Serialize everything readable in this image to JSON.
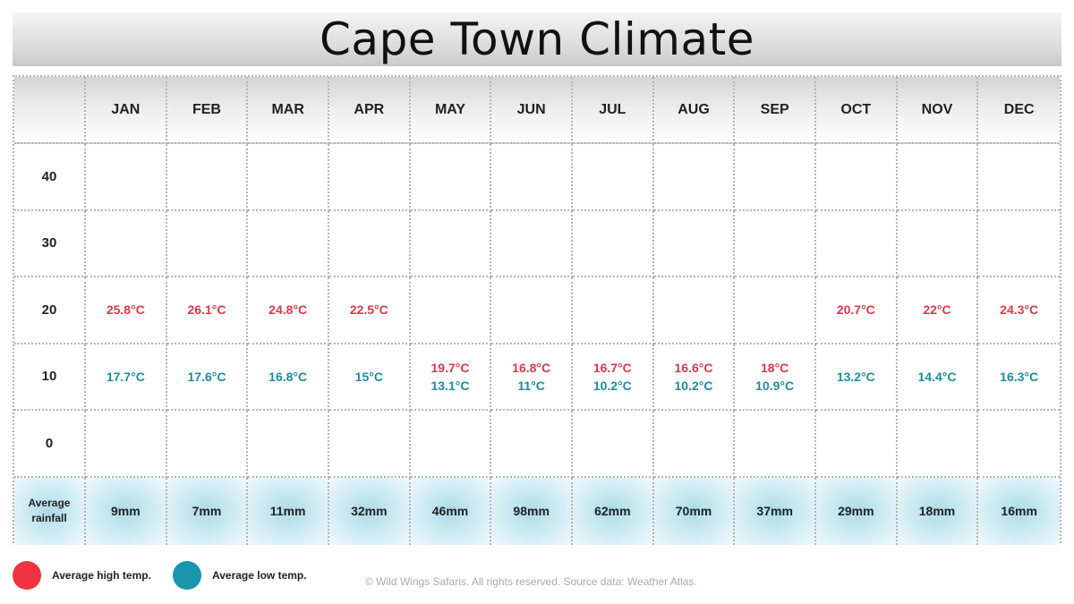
{
  "title": "Cape Town Climate",
  "colors": {
    "high": "#ef3340",
    "low": "#1995ad",
    "high_text": "#d8394a",
    "low_text": "#1e8c9e"
  },
  "chart_data": {
    "type": "table",
    "title": "Cape Town Climate",
    "months": [
      "JAN",
      "FEB",
      "MAR",
      "APR",
      "MAY",
      "JUN",
      "JUL",
      "AUG",
      "SEP",
      "OCT",
      "NOV",
      "DEC"
    ],
    "y_ticks": [
      "40",
      "30",
      "20",
      "10",
      "0"
    ],
    "series": [
      {
        "name": "Average high temp.",
        "values": [
          25.8,
          26.1,
          24.8,
          22.5,
          19.7,
          16.8,
          16.7,
          16.6,
          18,
          20.7,
          22,
          24.3
        ]
      },
      {
        "name": "Average low temp.",
        "values": [
          17.7,
          17.6,
          16.8,
          15,
          13.1,
          11,
          10.2,
          10.2,
          10.9,
          13.2,
          14.4,
          16.3
        ]
      }
    ],
    "high_labels": [
      "25.8°C",
      "26.1°C",
      "24.8°C",
      "22.5°C",
      "19.7°C",
      "16.8°C",
      "16.7°C",
      "16.6°C",
      "18°C",
      "20.7°C",
      "22°C",
      "24.3°C"
    ],
    "low_labels": [
      "17.7°C",
      "17.6°C",
      "16.8°C",
      "15°C",
      "13.1°C",
      "11°C",
      "10.2°C",
      "10.2°C",
      "10.9°C",
      "13.2°C",
      "14.4°C",
      "16.3°C"
    ],
    "rainfall": {
      "label_line1": "Average",
      "label_line2": "rainfall",
      "values_mm": [
        9,
        7,
        11,
        32,
        46,
        98,
        62,
        70,
        37,
        29,
        18,
        16
      ],
      "labels": [
        "9mm",
        "7mm",
        "11mm",
        "32mm",
        "46mm",
        "98mm",
        "62mm",
        "70mm",
        "37mm",
        "29mm",
        "18mm",
        "16mm"
      ]
    }
  },
  "legend": [
    {
      "name": "Average high temp.",
      "color": "#ef3340"
    },
    {
      "name": "Average low temp.",
      "color": "#1995ad"
    }
  ],
  "footer": "© Wild Wings Safaris. All rights reserved. Source data: Weather Atlas."
}
